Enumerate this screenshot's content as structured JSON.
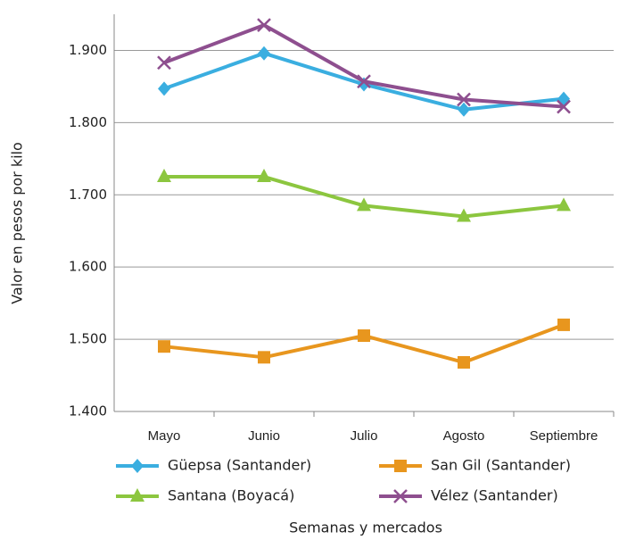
{
  "chart_data": {
    "type": "line",
    "x_label": "Semanas y mercados",
    "y_label": "Valor en pesos por kilo",
    "categories": [
      "Mayo",
      "Junio",
      "Julio",
      "Agosto",
      "Septiembre"
    ],
    "series": [
      {
        "name": "Güepsa (Santander)",
        "color": "#3aaee0",
        "marker": "diamond",
        "values": [
          1847,
          1896,
          1853,
          1818,
          1833
        ]
      },
      {
        "name": "San Gil (Santander)",
        "color": "#e8961e",
        "marker": "square",
        "values": [
          1490,
          1475,
          1505,
          1468,
          1520
        ]
      },
      {
        "name": "Santana (Boyacá)",
        "color": "#8cc63f",
        "marker": "triangle",
        "values": [
          1725,
          1725,
          1685,
          1670,
          1685
        ]
      },
      {
        "name": "Vélez (Santander)",
        "color": "#8e4f8f",
        "marker": "x",
        "values": [
          1883,
          1935,
          1857,
          1832,
          1822
        ]
      }
    ],
    "ylim": [
      1400,
      1950
    ],
    "yticks": [
      {
        "value": 1400,
        "label": "1.400"
      },
      {
        "value": 1500,
        "label": "1.500"
      },
      {
        "value": 1600,
        "label": "1.600"
      },
      {
        "value": 1700,
        "label": "1.700"
      },
      {
        "value": 1800,
        "label": "1.800"
      },
      {
        "value": 1900,
        "label": "1.900"
      }
    ],
    "grid": true,
    "legend": "bottom"
  }
}
